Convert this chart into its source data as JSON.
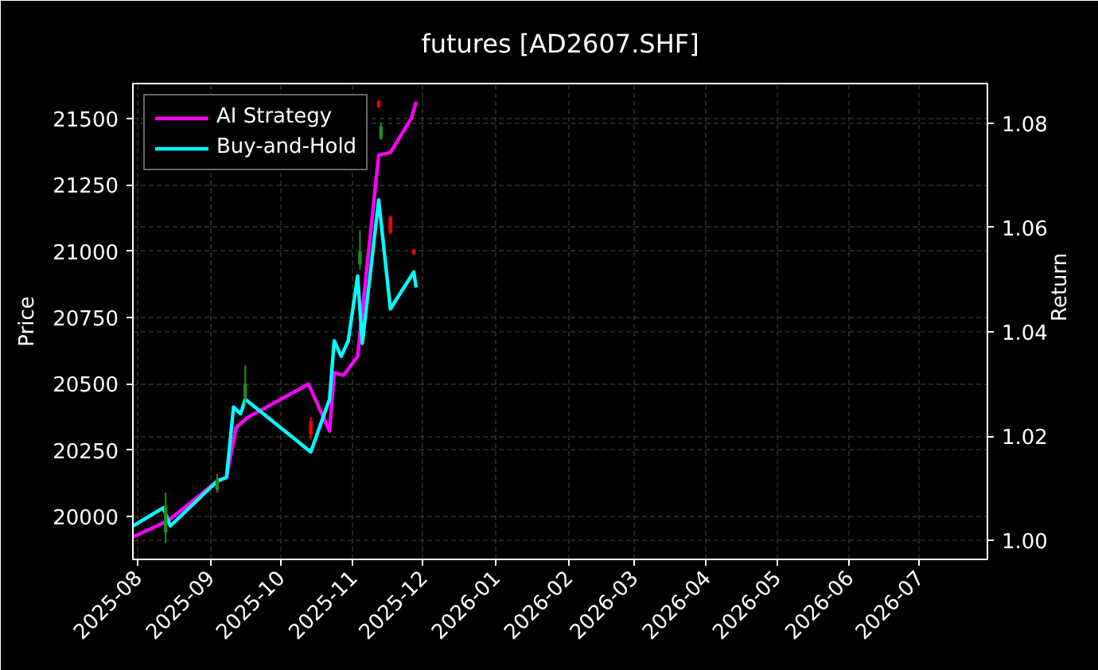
{
  "chart_data": {
    "type": "candlestick",
    "title": "futures [AD2607.SHF]",
    "ylabel": "Price",
    "y2label": "Return",
    "x": [
      "2025-08-13",
      "2025-09-04",
      "2025-09-16",
      "2025-10-14",
      "2025-11-04",
      "2025-11-12",
      "2025-11-13",
      "2025-11-17",
      "2025-11-27"
    ],
    "ohlc": [
      [
        19940,
        20090,
        19900,
        20040
      ],
      [
        20100,
        20160,
        20090,
        20140
      ],
      [
        20450,
        20570,
        20420,
        20500
      ],
      [
        20360,
        20375,
        20290,
        20310
      ],
      [
        20950,
        21080,
        20930,
        21000
      ],
      [
        21565,
        21570,
        21540,
        21545
      ],
      [
        21425,
        21485,
        21420,
        21470
      ],
      [
        21130,
        21135,
        21065,
        21070
      ],
      [
        21005,
        21008,
        20985,
        20990
      ]
    ],
    "colors": [
      "#228b22",
      "#228b22",
      "#228b22",
      "#ff0000",
      "#228b22",
      "#ff0000",
      "#228b22",
      "#ff0000",
      "#ff0000"
    ],
    "series": [
      {
        "name": "AI Strategy",
        "type": "line",
        "axis": "y2",
        "color": "#ff00ff",
        "x": [
          "2025-07-30",
          "2025-08-14",
          "2025-09-04",
          "2025-09-08",
          "2025-09-12",
          "2025-09-17",
          "2025-10-13",
          "2025-10-22",
          "2025-10-24",
          "2025-10-28",
          "2025-11-03",
          "2025-11-12",
          "2025-11-17",
          "2025-11-26",
          "2025-11-28"
        ],
        "values": [
          1.0007,
          1.0038,
          1.0114,
          1.0121,
          1.0216,
          1.0236,
          1.03,
          1.021,
          1.0322,
          1.0317,
          1.0353,
          1.0739,
          1.0744,
          1.081,
          1.0841
        ]
      },
      {
        "name": "Buy-and-Hold",
        "type": "line",
        "axis": "y2",
        "color": "#00ffff",
        "x": [
          "2025-07-30",
          "2025-08-12",
          "2025-08-15",
          "2025-09-04",
          "2025-09-08",
          "2025-09-11",
          "2025-09-14",
          "2025-09-16",
          "2025-10-14",
          "2025-10-22",
          "2025-10-24",
          "2025-10-27",
          "2025-10-30",
          "2025-11-03",
          "2025-11-05",
          "2025-11-12",
          "2025-11-17",
          "2025-11-27",
          "2025-11-28"
        ],
        "values": [
          1.0028,
          1.0063,
          1.0028,
          1.0114,
          1.0121,
          1.0256,
          1.0243,
          1.0271,
          1.017,
          1.0271,
          1.0383,
          1.0353,
          1.0383,
          1.0507,
          1.0378,
          1.0653,
          1.0444,
          1.0515,
          1.0485
        ]
      }
    ],
    "xlim": [
      "2025-07-30",
      "2026-07-30"
    ],
    "xticks": [
      "2025-08",
      "2025-09",
      "2025-10",
      "2025-11",
      "2025-12",
      "2026-01",
      "2026-02",
      "2026-03",
      "2026-04",
      "2026-05",
      "2026-06",
      "2026-07"
    ],
    "ylim": [
      19838,
      21632
    ],
    "yticks": [
      20000,
      20250,
      20500,
      20750,
      21000,
      21250,
      21500
    ],
    "y2lim": [
      0.9964,
      1.0876
    ],
    "y2ticks": [
      {
        "value": 1,
        "label": "1.00"
      },
      1.02,
      1.04,
      1.06,
      1.08
    ],
    "grid": true,
    "legend": "top left"
  }
}
